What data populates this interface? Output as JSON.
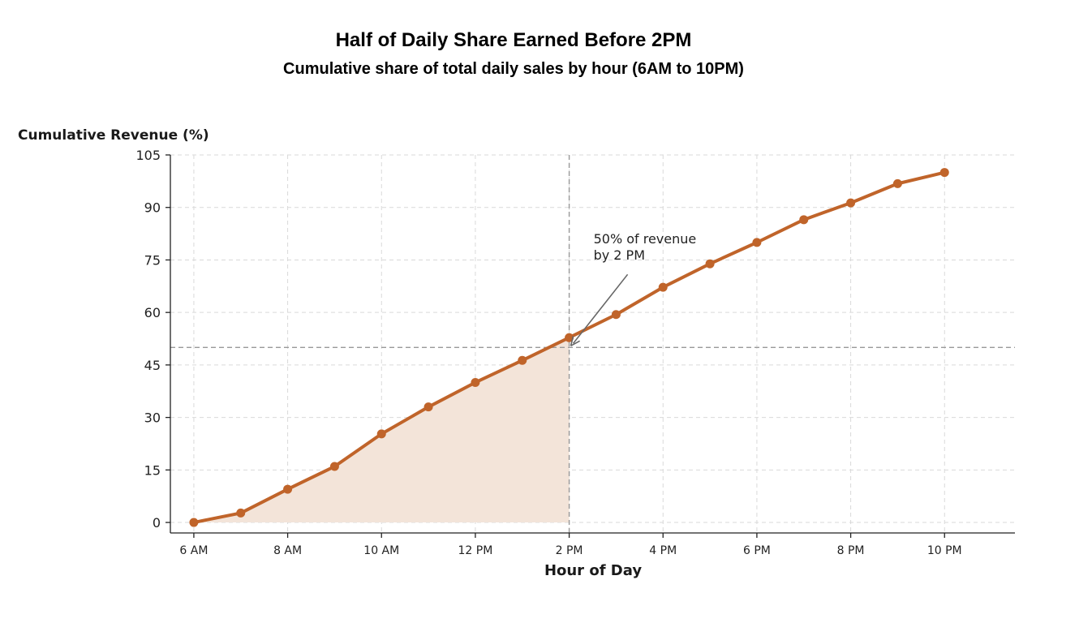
{
  "colors": {
    "line": "#c0642a",
    "fill": "#f3e4d9",
    "reference": "#999999",
    "arrow": "#666666"
  },
  "chart_data": {
    "type": "line",
    "title": "Half of Daily Share Earned Before 2PM",
    "subtitle": "Cumulative share of total daily sales by hour (6AM to 10PM)",
    "xlabel": "Hour of Day",
    "ylabel": "Cumulative Revenue (%)",
    "ylim": [
      -3,
      105
    ],
    "xlim": [
      5.5,
      23.5
    ],
    "yticks": [
      0,
      15,
      30,
      45,
      60,
      75,
      90,
      105
    ],
    "xticks": [
      6,
      8,
      10,
      12,
      14,
      16,
      18,
      20,
      22
    ],
    "xtick_labels": [
      "6 AM",
      "8 AM",
      "10 AM",
      "12 PM",
      "2 PM",
      "4 PM",
      "6 PM",
      "8 PM",
      "10 PM"
    ],
    "grid": true,
    "series": [
      {
        "x": [
          6,
          7,
          8,
          9,
          10,
          11,
          12,
          13,
          14,
          15,
          16,
          17,
          18,
          19,
          20,
          21,
          22
        ],
        "values": [
          0,
          2.7,
          9.5,
          16.0,
          25.3,
          33.0,
          40.0,
          46.3,
          52.8,
          59.4,
          67.2,
          73.9,
          80.0,
          86.5,
          91.3,
          96.8,
          100
        ]
      }
    ],
    "shaded_region": {
      "x_from": 6,
      "x_to": 14
    },
    "reference_lines": {
      "vertical_x": 14,
      "horizontal_y": 50
    },
    "annotation": {
      "lines": [
        "50% of revenue",
        "by 2 PM"
      ],
      "point_x": 14,
      "point_y": 50
    }
  }
}
